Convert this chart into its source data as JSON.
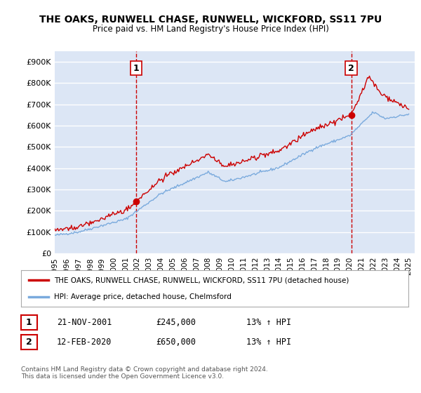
{
  "title": "THE OAKS, RUNWELL CHASE, RUNWELL, WICKFORD, SS11 7PU",
  "subtitle": "Price paid vs. HM Land Registry's House Price Index (HPI)",
  "ylabel_ticks": [
    "£0",
    "£100K",
    "£200K",
    "£300K",
    "£400K",
    "£500K",
    "£600K",
    "£700K",
    "£800K",
    "£900K"
  ],
  "ytick_vals": [
    0,
    100000,
    200000,
    300000,
    400000,
    500000,
    600000,
    700000,
    800000,
    900000
  ],
  "ylim": [
    0,
    950000
  ],
  "xlim_start": 1995.0,
  "xlim_end": 2025.5,
  "background_color": "#ffffff",
  "plot_bg_color": "#dce6f5",
  "grid_color": "#ffffff",
  "red_line_color": "#cc0000",
  "blue_line_color": "#7aaadd",
  "vline_color": "#cc0000",
  "sale1_x": 2001.896,
  "sale1_y": 245000,
  "sale2_x": 2020.12,
  "sale2_y": 650000,
  "sale1_label": "1",
  "sale2_label": "2",
  "legend_red": "THE OAKS, RUNWELL CHASE, RUNWELL, WICKFORD, SS11 7PU (detached house)",
  "legend_blue": "HPI: Average price, detached house, Chelmsford",
  "table_row1": [
    "1",
    "21-NOV-2001",
    "£245,000",
    "13% ↑ HPI"
  ],
  "table_row2": [
    "2",
    "12-FEB-2020",
    "£650,000",
    "13% ↑ HPI"
  ],
  "footer": "Contains HM Land Registry data © Crown copyright and database right 2024.\nThis data is licensed under the Open Government Licence v3.0.",
  "xtick_years": [
    1995,
    1996,
    1997,
    1998,
    1999,
    2000,
    2001,
    2002,
    2003,
    2004,
    2005,
    2006,
    2007,
    2008,
    2009,
    2010,
    2011,
    2012,
    2013,
    2014,
    2015,
    2016,
    2017,
    2018,
    2019,
    2020,
    2021,
    2022,
    2023,
    2024,
    2025
  ]
}
